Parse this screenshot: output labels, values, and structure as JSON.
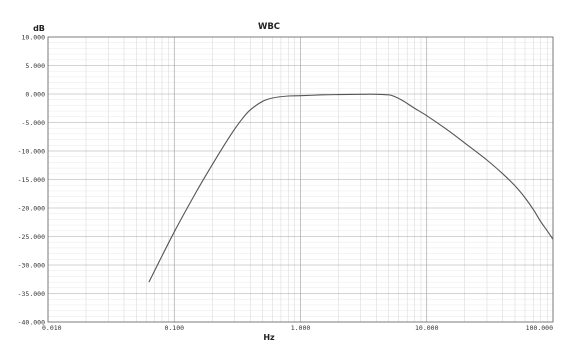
{
  "chart_data": {
    "type": "line",
    "title": "WBC",
    "xlabel": "Hz",
    "ylabel": "dB",
    "x_scale": "log",
    "xlim": [
      0.01,
      100
    ],
    "ylim": [
      -40,
      10
    ],
    "grid": true,
    "x_ticks": [
      {
        "value": 0.01,
        "label": "0.010"
      },
      {
        "value": 0.1,
        "label": "0.100"
      },
      {
        "value": 1,
        "label": "1.000"
      },
      {
        "value": 10,
        "label": "10.000"
      },
      {
        "value": 100,
        "label": "100.000"
      }
    ],
    "y_ticks": [
      {
        "value": 10,
        "label": "10.000"
      },
      {
        "value": 5,
        "label": "5.000"
      },
      {
        "value": 0,
        "label": "0.000"
      },
      {
        "value": -5,
        "label": "-5.000"
      },
      {
        "value": -10,
        "label": "-10.000"
      },
      {
        "value": -15,
        "label": "-15.000"
      },
      {
        "value": -20,
        "label": "-20.000"
      },
      {
        "value": -25,
        "label": "-25.000"
      },
      {
        "value": -30,
        "label": "-30.000"
      },
      {
        "value": -35,
        "label": "-35.000"
      },
      {
        "value": -40,
        "label": "-40.000"
      }
    ],
    "series": [
      {
        "line_color": "#555555",
        "x": [
          0.063,
          0.1,
          0.15,
          0.2,
          0.25,
          0.3,
          0.35,
          0.4,
          0.5,
          0.6,
          0.8,
          1.0,
          1.5,
          2.0,
          3.0,
          4.0,
          5.0,
          5.5,
          6.5,
          8.0,
          10,
          15,
          20,
          30,
          40,
          50,
          60,
          70,
          80,
          90,
          100
        ],
        "y": [
          -33,
          -24.2,
          -17.1,
          -12.4,
          -8.9,
          -6.2,
          -4.2,
          -2.8,
          -1.3,
          -0.7,
          -0.35,
          -0.3,
          -0.15,
          -0.1,
          -0.05,
          -0.05,
          -0.15,
          -0.4,
          -1.2,
          -2.5,
          -3.8,
          -6.5,
          -8.6,
          -11.6,
          -14.0,
          -16.1,
          -18.2,
          -20.3,
          -22.4,
          -24.0,
          -25.5
        ]
      }
    ]
  }
}
